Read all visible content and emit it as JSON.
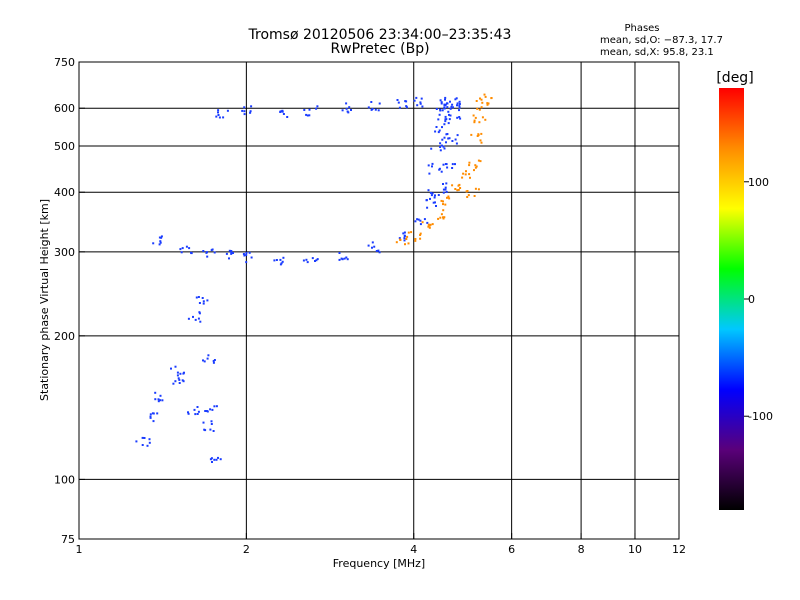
{
  "chart_data": {
    "type": "scatter",
    "title": "Tromsø 20120506 23:34:00–23:35:43",
    "subtitle": "RwPretec (Bp)",
    "xlabel": "Frequency [MHz]",
    "ylabel": "Stationary phase Virtual Height [km]",
    "x_scale": "log",
    "y_scale": "log",
    "xlim": [
      1,
      12
    ],
    "ylim": [
      75,
      750
    ],
    "x_ticks": [
      1,
      2,
      4,
      6,
      8,
      10,
      12
    ],
    "y_ticks": [
      75,
      100,
      200,
      300,
      400,
      500,
      600,
      750
    ],
    "grid": true,
    "phases": {
      "title": "Phases",
      "o_line": "mean, sd,O: −87.3, 17.7",
      "x_line": "mean, sd,X:  95.8, 23.1"
    },
    "colorbar": {
      "label": "[deg]",
      "range": [
        -180,
        180
      ],
      "ticks": [
        -100,
        0,
        100
      ],
      "colors": [
        "#000000",
        "#5a007a",
        "#0000ff",
        "#00c8ff",
        "#00ff00",
        "#ffff00",
        "#ff8c00",
        "#ff0000"
      ]
    },
    "series": [
      {
        "name": "O",
        "color": "#1a3cff",
        "trace_segments": [
          {
            "x": [
              1.38,
              1.55,
              1.7,
              1.85,
              2.0,
              2.3,
              2.6,
              3.0,
              3.4,
              3.8,
              4.1,
              4.3
            ],
            "y": [
              320,
              305,
              300,
              297,
              293,
              290,
              291,
              296,
              308,
              325,
              350,
              380
            ]
          },
          {
            "x": [
              1.8,
              2.0,
              2.3,
              2.6,
              3.0,
              3.4,
              3.8,
              4.1,
              4.5
            ],
            "y": [
              590,
              595,
              590,
              595,
              605,
              610,
              615,
              620,
              615
            ]
          },
          {
            "x": [
              4.3,
              4.35,
              4.4,
              4.45,
              4.5,
              4.55,
              4.6,
              4.65
            ],
            "y": [
              400,
              450,
              500,
              530,
              560,
              590,
              610,
              620
            ]
          },
          {
            "x": [
              4.55,
              4.6,
              4.65,
              4.7,
              4.75
            ],
            "y": [
              410,
              460,
              520,
              570,
              610
            ]
          },
          {
            "x": [
              1.3,
              1.35,
              1.4,
              1.5,
              1.6,
              1.7,
              1.75
            ],
            "y": [
              120,
              135,
              150,
              160,
              140,
              130,
              110
            ]
          },
          {
            "x": [
              1.5,
              1.6,
              1.65,
              1.7,
              1.72
            ],
            "y": [
              170,
              220,
              240,
              180,
              140
            ]
          }
        ]
      },
      {
        "name": "X",
        "color": "#ff8c00",
        "trace_segments": [
          {
            "x": [
              3.8,
              4.0,
              4.2,
              4.4,
              4.6,
              4.8,
              5.0
            ],
            "y": [
              318,
              325,
              340,
              360,
              385,
              410,
              440
            ]
          },
          {
            "x": [
              5.1,
              5.15,
              5.2,
              5.25,
              5.3,
              5.35
            ],
            "y": [
              400,
              460,
              520,
              570,
              610,
              630
            ]
          }
        ]
      }
    ]
  }
}
